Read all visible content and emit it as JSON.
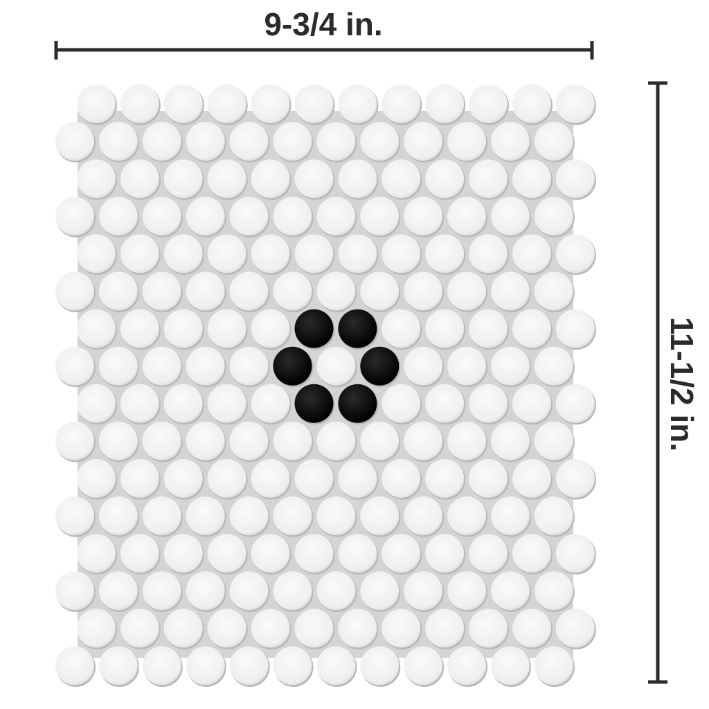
{
  "dimensions": {
    "width_label": "9-3/4 in.",
    "height_label": "11-1/2 in."
  },
  "tile_sheet": {
    "rows": 16,
    "tiles_per_row": 12,
    "tile_color": "#f4f4f4",
    "grout_color": "#cfcfcf",
    "accent_color": "#0a0a0a",
    "accent_tiles": [
      [
        6,
        5
      ],
      [
        6,
        6
      ],
      [
        7,
        5
      ],
      [
        7,
        7
      ],
      [
        8,
        5
      ],
      [
        8,
        6
      ]
    ]
  },
  "colors": {
    "dimension_line": "#2b2b2b"
  }
}
